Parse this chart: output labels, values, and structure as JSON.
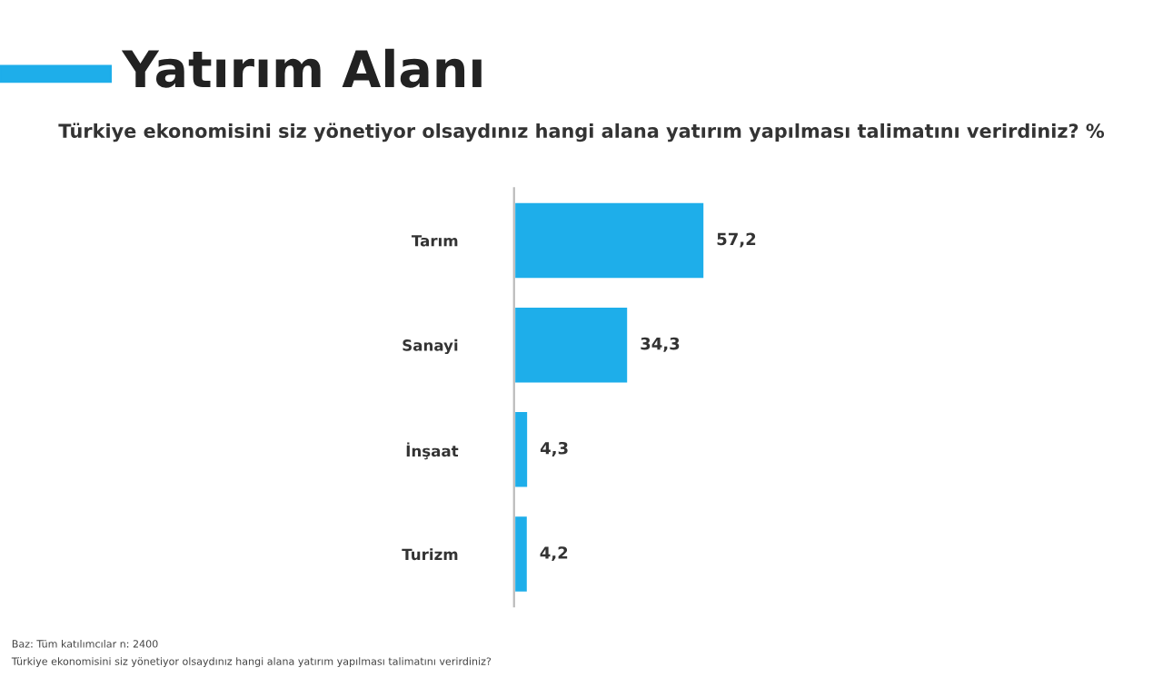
{
  "chart_data": {
    "type": "bar",
    "orientation": "horizontal",
    "title": "Yatırım Alanı",
    "subtitle": "Türkiye ekonomisini siz yönetiyor olsaydınız hangi alana yatırım yapılması talimatını verirdiniz? %",
    "categories": [
      "Tarım",
      "Sanayi",
      "İnşaat",
      "Turizm"
    ],
    "values": [
      57.2,
      34.3,
      4.3,
      4.2
    ],
    "value_labels": [
      "57,2",
      "34,3",
      "4,3",
      "4,2"
    ],
    "color": "#1eaeea",
    "annotations": [
      "Baz: Tüm katılımcılar n: 2400",
      "Türkiye ekonomisini siz yönetiyor olsaydınız hangi alana yatırım yapılması talimatını verirdiniz?"
    ]
  }
}
